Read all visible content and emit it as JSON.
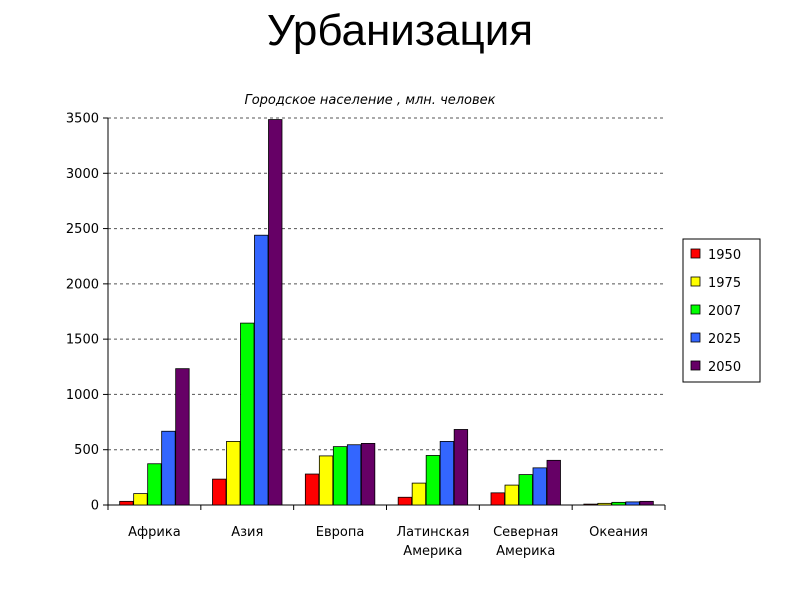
{
  "slide": {
    "title": "Урбанизация"
  },
  "chart_data": {
    "type": "bar",
    "title": "Городское население , млн. человек",
    "xlabel": "",
    "ylabel": "",
    "ylim": [
      0,
      3500
    ],
    "yticks": [
      0,
      500,
      1000,
      1500,
      2000,
      2500,
      3000,
      3500
    ],
    "grid": true,
    "legend_position": "right",
    "categories": [
      [
        "Африка"
      ],
      [
        "Азия"
      ],
      [
        "Европа"
      ],
      [
        "Латинская",
        "Америка"
      ],
      [
        "Северная",
        "Америка"
      ],
      [
        "Океания"
      ]
    ],
    "series": [
      {
        "name": "1950",
        "color": "#ff0000",
        "values": [
          33,
          234,
          280,
          70,
          110,
          8
        ]
      },
      {
        "name": "1975",
        "color": "#ffff00",
        "values": [
          103,
          575,
          444,
          198,
          180,
          15
        ]
      },
      {
        "name": "2007",
        "color": "#00ff00",
        "values": [
          373,
          1645,
          528,
          448,
          275,
          24
        ]
      },
      {
        "name": "2025",
        "color": "#3366ff",
        "values": [
          667,
          2440,
          545,
          575,
          336,
          28
        ]
      },
      {
        "name": "2050",
        "color": "#660066",
        "values": [
          1233,
          3486,
          557,
          683,
          404,
          33
        ]
      }
    ]
  }
}
